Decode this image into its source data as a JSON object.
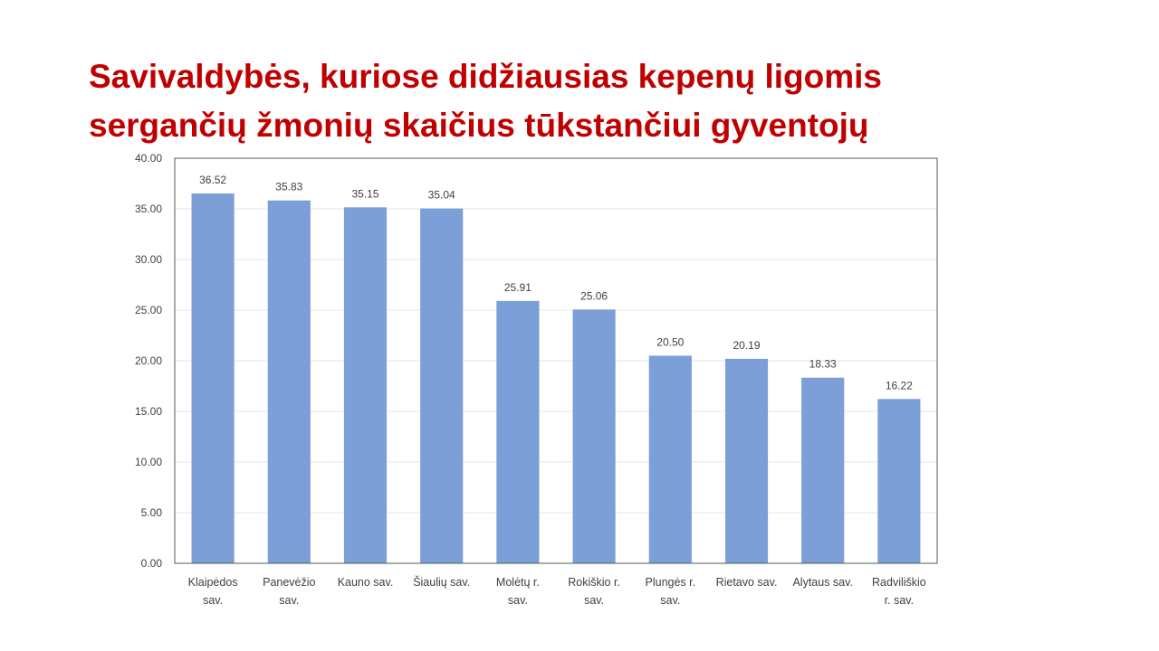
{
  "slide": {
    "title_line1": "Savivaldybės, kuriose didžiausias kepenų ligomis",
    "title_line2": "sergančių žmonių skaičius tūkstančiui gyventojų",
    "title_color": "#c00000"
  },
  "chart_data": {
    "type": "bar",
    "title": "",
    "xlabel": "",
    "ylabel": "",
    "categories": [
      [
        "Klaipėdos",
        "sav."
      ],
      [
        "Panevėžio",
        "sav."
      ],
      [
        "Kauno sav."
      ],
      [
        "Šiaulių sav."
      ],
      [
        "Molėtų r.",
        "sav."
      ],
      [
        "Rokiškio r.",
        "sav."
      ],
      [
        "Plungės r.",
        "sav."
      ],
      [
        "Rietavo sav."
      ],
      [
        "Alytaus sav."
      ],
      [
        "Radviliškio",
        "r. sav."
      ]
    ],
    "values": [
      36.52,
      35.83,
      35.15,
      35.04,
      25.91,
      25.06,
      20.5,
      20.19,
      18.33,
      16.22
    ],
    "value_labels": [
      "36.52",
      "35.83",
      "35.15",
      "35.04",
      "25.91",
      "25.06",
      "20.50",
      "20.19",
      "18.33",
      "16.22"
    ],
    "ylim": [
      0,
      40
    ],
    "yticks": [
      0,
      5,
      10,
      15,
      20,
      25,
      30,
      35,
      40
    ],
    "ytick_labels": [
      "0.00",
      "5.00",
      "10.00",
      "15.00",
      "20.00",
      "25.00",
      "30.00",
      "35.00",
      "40.00"
    ],
    "bar_color": "#7b9fd6",
    "grid": true,
    "legend": "none"
  }
}
